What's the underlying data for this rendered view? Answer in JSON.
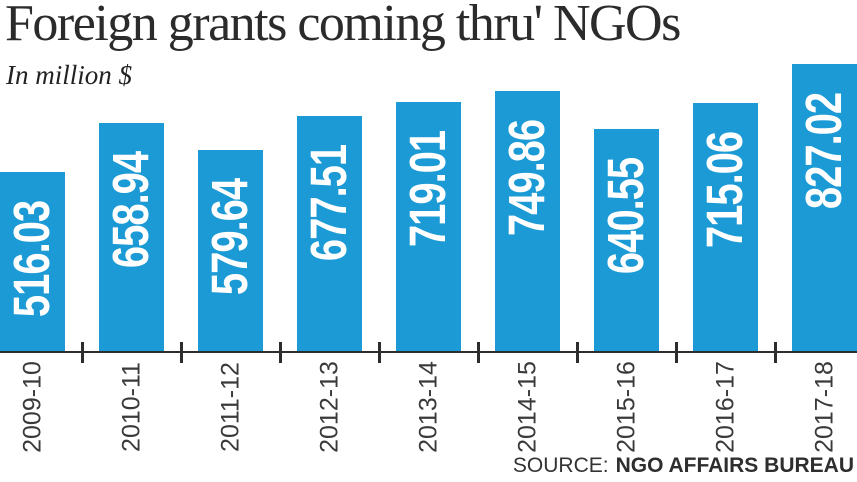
{
  "title": "Foreign grants coming thru' NGOs",
  "subtitle": "In million $",
  "source": {
    "label": "SOURCE:",
    "name": "NGO AFFAIRS BUREAU"
  },
  "colors": {
    "bar": "#1b9ad5",
    "axis": "#2d2d2d",
    "bar_value_text": "#ffffff",
    "title_text": "#2b2b2b",
    "tick_label_text": "#3a3a3a"
  },
  "chart_data": {
    "type": "bar",
    "title": "Foreign grants coming thru' NGOs",
    "ylabel": "In million $",
    "unit": "million $",
    "categories": [
      "2009-10",
      "2010-11",
      "2011-12",
      "2012-13",
      "2013-14",
      "2014-15",
      "2015-16",
      "2016-17",
      "2017-18"
    ],
    "values": [
      516.03,
      658.94,
      579.64,
      677.51,
      719.01,
      749.86,
      640.55,
      715.06,
      827.02
    ],
    "value_labels": [
      "516.03",
      "658.94",
      "579.64",
      "677.51",
      "719.01",
      "749.86",
      "640.55",
      "715.06",
      "827.02"
    ],
    "ylim": [
      0,
      850
    ],
    "grid": false,
    "legend": "none",
    "bar_color": "#1b9ad5",
    "value_label_style": "white bold, rotated 90deg inside bars, near bar top",
    "category_label_style": "dark gray, rotated 90deg below axis",
    "source": "NGO AFFAIRS BUREAU"
  }
}
